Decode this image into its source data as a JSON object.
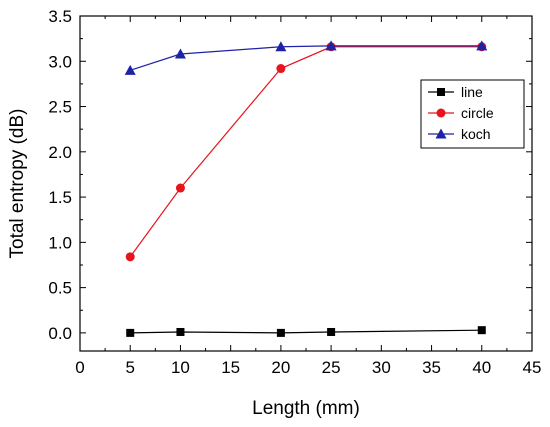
{
  "chart_data": {
    "type": "line",
    "title": "",
    "xlabel": "Length (mm)",
    "ylabel": "Total entropy (dB)",
    "xlim": [
      0,
      45
    ],
    "ylim": [
      -0.2,
      3.5
    ],
    "x_ticks": [
      "0",
      "5",
      "10",
      "15",
      "20",
      "25",
      "30",
      "35",
      "40",
      "45"
    ],
    "y_ticks": [
      "0.0",
      "0.5",
      "1.0",
      "1.5",
      "2.0",
      "2.5",
      "3.0",
      "3.5"
    ],
    "x_tick_values": [
      0,
      5,
      10,
      15,
      20,
      25,
      30,
      35,
      40,
      45
    ],
    "y_tick_values": [
      0.0,
      0.5,
      1.0,
      1.5,
      2.0,
      2.5,
      3.0,
      3.5
    ],
    "grid": false,
    "legend_position": "top-right",
    "series": [
      {
        "name": "line",
        "color": "#000000",
        "marker": "square",
        "x": [
          5,
          10,
          20,
          25,
          40
        ],
        "y": [
          0.0,
          0.01,
          0.0,
          0.01,
          0.03
        ]
      },
      {
        "name": "circle",
        "color": "#e8141c",
        "marker": "circle",
        "x": [
          5,
          10,
          20,
          25,
          40
        ],
        "y": [
          0.84,
          1.6,
          2.92,
          3.16,
          3.16
        ]
      },
      {
        "name": "koch",
        "color": "#1e22a6",
        "marker": "triangle",
        "x": [
          5,
          10,
          20,
          25,
          40
        ],
        "y": [
          2.9,
          3.08,
          3.16,
          3.17,
          3.17
        ]
      }
    ]
  }
}
